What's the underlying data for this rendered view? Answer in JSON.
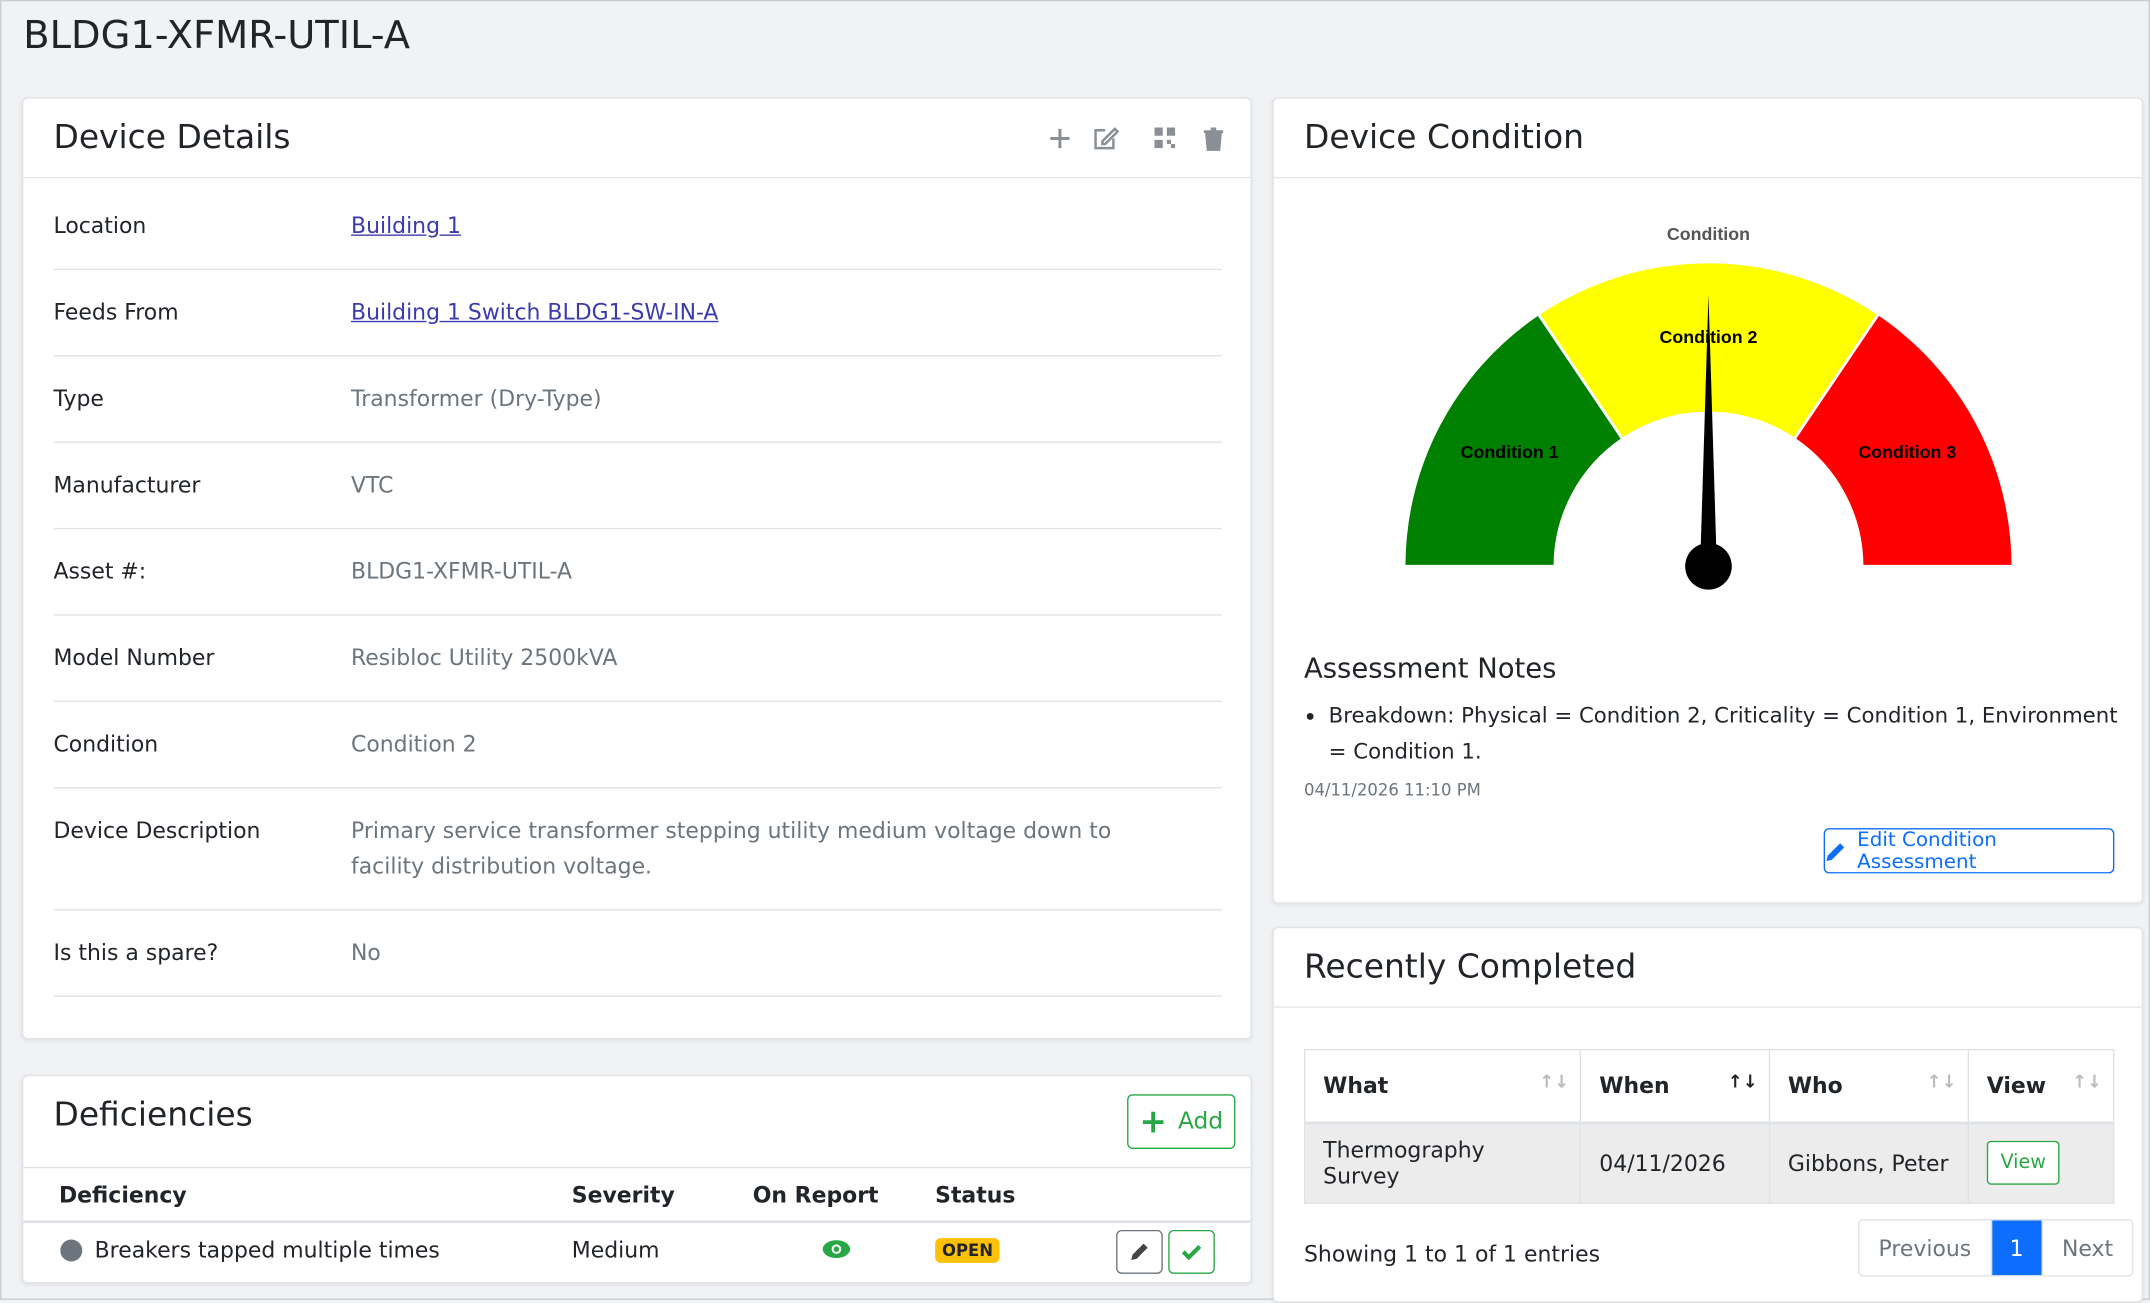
{
  "page_title": "BLDG1-XFMR-UTIL-A",
  "device_details": {
    "title": "Device Details",
    "rows": [
      {
        "label": "Location",
        "value": "Building 1",
        "link": true
      },
      {
        "label": "Feeds From",
        "value": "Building 1 Switch BLDG1-SW-IN-A",
        "link": true
      },
      {
        "label": "Type",
        "value": "Transformer (Dry-Type)"
      },
      {
        "label": "Manufacturer",
        "value": "VTC"
      },
      {
        "label": "Asset #:",
        "value": "BLDG1-XFMR-UTIL-A"
      },
      {
        "label": "Model Number",
        "value": "Resibloc Utility 2500kVA"
      },
      {
        "label": "Condition",
        "value": "Condition 2"
      },
      {
        "label": "Device Description",
        "value": "Primary service transformer stepping utility medium voltage down to facility distribution voltage."
      },
      {
        "label": "Is this a spare?",
        "value": "No"
      }
    ]
  },
  "deficiencies": {
    "title": "Deficiencies",
    "add_button": "Add",
    "columns": [
      "Deficiency",
      "Severity",
      "On Report",
      "Status"
    ],
    "rows": [
      {
        "deficiency": "Breakers tapped multiple times",
        "severity": "Medium",
        "status": "OPEN"
      }
    ]
  },
  "device_condition": {
    "title": "Device Condition",
    "gauge": {
      "title": "Condition",
      "segments": [
        "Condition 1",
        "Condition 2",
        "Condition 3"
      ]
    },
    "notes_title": "Assessment Notes",
    "notes": [
      "Breakdown: Physical = Condition 2, Criticality = Condition 1, Environment = Condition 1."
    ],
    "timestamp": "04/11/2026 11:10 PM",
    "edit_button": "Edit Condition Assessment"
  },
  "recently_completed": {
    "title": "Recently Completed",
    "columns": [
      "What",
      "When",
      "Who",
      "View"
    ],
    "rows": [
      [
        "Thermography Survey",
        "04/11/2026",
        "Gibbons, Peter",
        "View"
      ]
    ],
    "info": "Showing 1 to 1 of 1 entries",
    "pagination": [
      "Previous",
      "1",
      "Next"
    ]
  }
}
